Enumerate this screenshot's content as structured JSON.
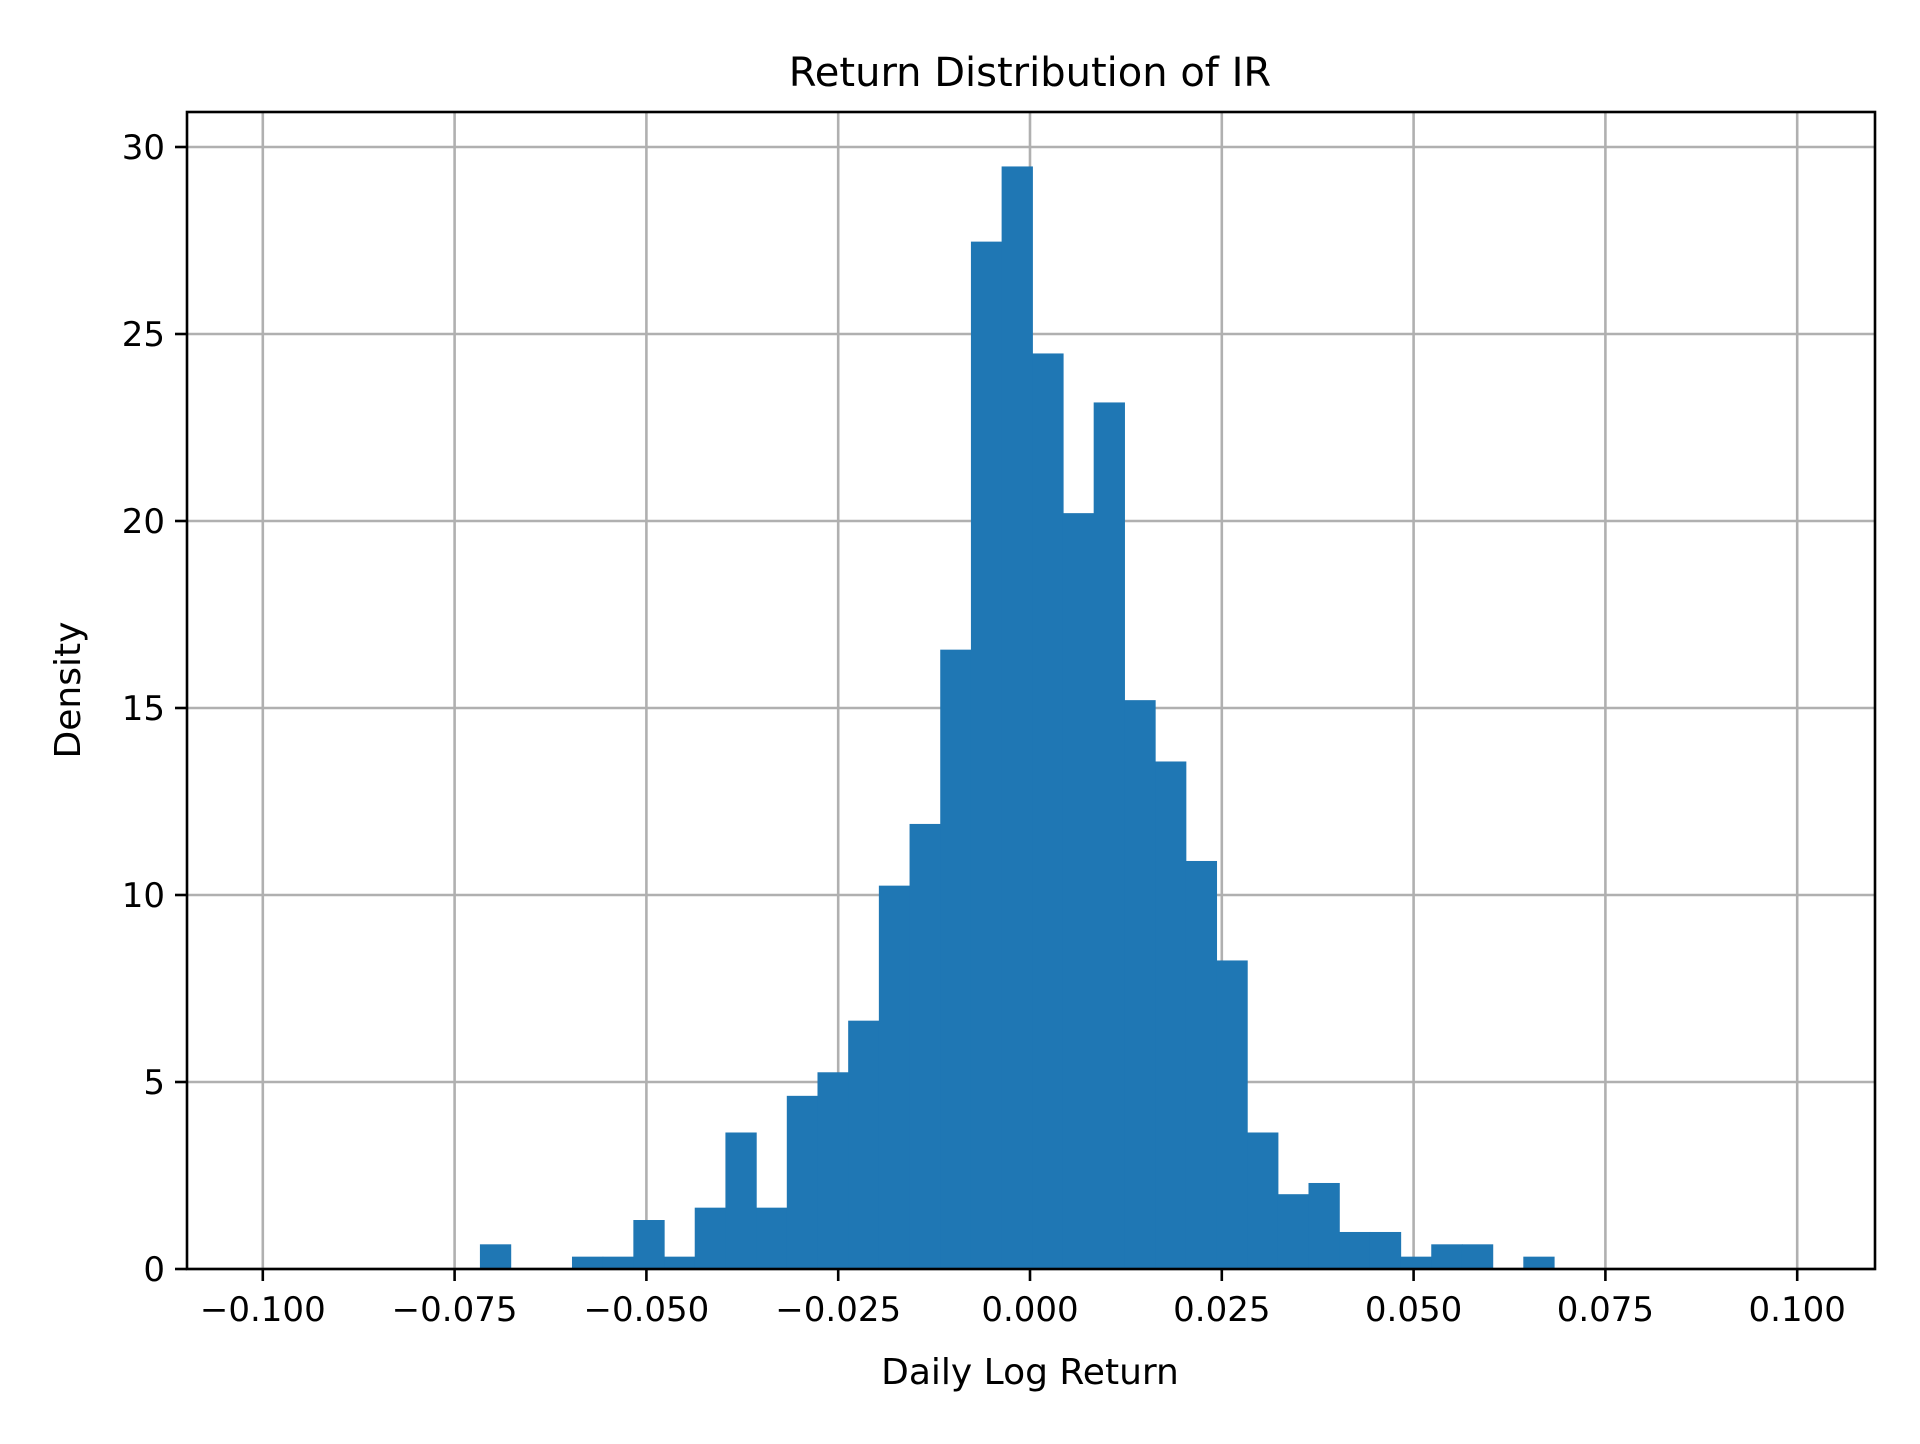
{
  "chart_data": {
    "type": "bar",
    "subtype": "histogram",
    "title": "Return Distribution of IR",
    "xlabel": "Daily Log Return",
    "ylabel": "Density",
    "xlim": [
      -0.109,
      0.109
    ],
    "ylim": [
      0,
      31
    ],
    "grid": true,
    "legend": null,
    "bar_color": "#1f77b4",
    "bin_width": 0.004,
    "x_ticks": [
      -0.1,
      -0.075,
      -0.05,
      -0.025,
      0.0,
      0.025,
      0.05,
      0.075,
      0.1
    ],
    "x_tick_labels": [
      "−0.100",
      "−0.075",
      "−0.050",
      "−0.025",
      "0.000",
      "0.025",
      "0.050",
      "0.075",
      "0.100"
    ],
    "y_ticks": [
      0,
      5,
      10,
      15,
      20,
      25,
      30
    ],
    "y_tick_labels": [
      "0",
      "5",
      "10",
      "15",
      "20",
      "25",
      "30"
    ],
    "bins": [
      {
        "x0": -0.0717,
        "density": 0.66
      },
      {
        "x0": -0.0677,
        "density": 0.0
      },
      {
        "x0": -0.0637,
        "density": 0.0
      },
      {
        "x0": -0.0597,
        "density": 0.33
      },
      {
        "x0": -0.0557,
        "density": 0.33
      },
      {
        "x0": -0.0517,
        "density": 1.31
      },
      {
        "x0": -0.0477,
        "density": 0.33
      },
      {
        "x0": -0.0437,
        "density": 1.64
      },
      {
        "x0": -0.0397,
        "density": 3.65
      },
      {
        "x0": -0.0357,
        "density": 1.64
      },
      {
        "x0": -0.0317,
        "density": 4.63
      },
      {
        "x0": -0.0277,
        "density": 5.26
      },
      {
        "x0": -0.0237,
        "density": 6.64
      },
      {
        "x0": -0.0197,
        "density": 10.25
      },
      {
        "x0": -0.0157,
        "density": 11.9
      },
      {
        "x0": -0.0117,
        "density": 16.56
      },
      {
        "x0": -0.0077,
        "density": 27.47
      },
      {
        "x0": -0.0037,
        "density": 29.48
      },
      {
        "x0": 0.0003,
        "density": 24.48
      },
      {
        "x0": 0.0043,
        "density": 20.21
      },
      {
        "x0": 0.0083,
        "density": 23.17
      },
      {
        "x0": 0.0123,
        "density": 15.21
      },
      {
        "x0": 0.0163,
        "density": 13.57
      },
      {
        "x0": 0.0203,
        "density": 10.91
      },
      {
        "x0": 0.0243,
        "density": 8.25
      },
      {
        "x0": 0.0283,
        "density": 3.65
      },
      {
        "x0": 0.0323,
        "density": 2.0
      },
      {
        "x0": 0.0363,
        "density": 2.3
      },
      {
        "x0": 0.0403,
        "density": 0.99
      },
      {
        "x0": 0.0443,
        "density": 0.99
      },
      {
        "x0": 0.0483,
        "density": 0.33
      },
      {
        "x0": 0.0523,
        "density": 0.66
      },
      {
        "x0": 0.0563,
        "density": 0.66
      },
      {
        "x0": 0.0603,
        "density": 0.0
      },
      {
        "x0": 0.0643,
        "density": 0.33
      }
    ]
  }
}
